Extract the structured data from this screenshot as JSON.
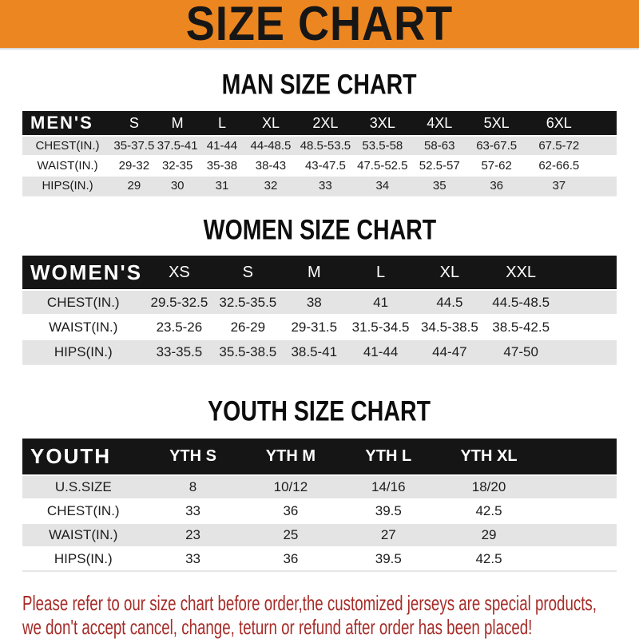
{
  "banner": {
    "title": "SIZE CHART"
  },
  "colors": {
    "banner_bg": "#ec8620",
    "bar_bg": "#151515",
    "bar_text": "#ffffff",
    "alt_bg": "#e4e4e4",
    "ink": "#0d0d0d",
    "note_red": "#a62c28"
  },
  "chart_data": [
    {
      "type": "table",
      "title": "MAN SIZE CHART",
      "group_label": "MEN'S",
      "columns": [
        "S",
        "M",
        "L",
        "XL",
        "2XL",
        "3XL",
        "4XL",
        "5XL",
        "6XL"
      ],
      "rows": [
        {
          "label": "CHEST(IN.)",
          "values": [
            "35-37.5",
            "37.5-41",
            "41-44",
            "44-48.5",
            "48.5-53.5",
            "53.5-58",
            "58-63",
            "63-67.5",
            "67.5-72"
          ]
        },
        {
          "label": "WAIST(IN.)",
          "values": [
            "29-32",
            "32-35",
            "35-38",
            "38-43",
            "43-47.5",
            "47.5-52.5",
            "52.5-57",
            "57-62",
            "62-66.5"
          ]
        },
        {
          "label": "HIPS(IN.)",
          "values": [
            "29",
            "30",
            "31",
            "32",
            "33",
            "34",
            "35",
            "36",
            "37"
          ]
        }
      ]
    },
    {
      "type": "table",
      "title": "WOMEN SIZE CHART",
      "group_label": "WOMEN'S",
      "columns": [
        "XS",
        "S",
        "M",
        "L",
        "XL",
        "XXL"
      ],
      "rows": [
        {
          "label": "CHEST(IN.)",
          "values": [
            "29.5-32.5",
            "32.5-35.5",
            "38",
            "41",
            "44.5",
            "44.5-48.5"
          ]
        },
        {
          "label": "WAIST(IN.)",
          "values": [
            "23.5-26",
            "26-29",
            "29-31.5",
            "31.5-34.5",
            "34.5-38.5",
            "38.5-42.5"
          ]
        },
        {
          "label": "HIPS(IN.)",
          "values": [
            "33-35.5",
            "35.5-38.5",
            "38.5-41",
            "41-44",
            "44-47",
            "47-50"
          ]
        }
      ]
    },
    {
      "type": "table",
      "title": "YOUTH SIZE CHART",
      "group_label": "YOUTH",
      "columns": [
        "YTH S",
        "YTH M",
        "YTH L",
        "YTH XL"
      ],
      "rows": [
        {
          "label": "U.S.SIZE",
          "values": [
            "8",
            "10/12",
            "14/16",
            "18/20"
          ]
        },
        {
          "label": "CHEST(IN.)",
          "values": [
            "33",
            "36",
            "39.5",
            "42.5"
          ]
        },
        {
          "label": "WAIST(IN.)",
          "values": [
            "23",
            "25",
            "27",
            "29"
          ]
        },
        {
          "label": "HIPS(IN.)",
          "values": [
            "33",
            "36",
            "39.5",
            "42.5"
          ]
        }
      ]
    }
  ],
  "footer": {
    "line1": "Please refer to our size chart before order,the customized jerseys are special products,",
    "line2": "we don't accept cancel, change, teturn or refund after order has been placed!"
  }
}
